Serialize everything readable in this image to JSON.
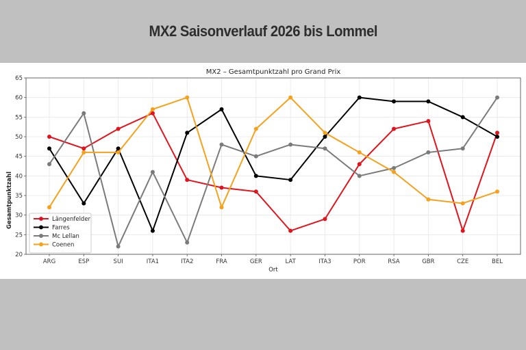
{
  "banner": {
    "title": "MX2 Saisonverlauf 2026 bis Lommel"
  },
  "colors": {
    "page_background": "#c0c0c0",
    "panel_background": "#ffffff",
    "grid": "#e6e6e6",
    "axis": "#555555"
  },
  "chart_data": {
    "type": "line",
    "title": "MX2 – Gesamtpunktzahl pro Grand Prix",
    "xlabel": "Ort",
    "ylabel": "Gesamtpunktzahl",
    "categories": [
      "ARG",
      "ESP",
      "SUI",
      "ITA1",
      "ITA2",
      "FRA",
      "GER",
      "LAT",
      "ITA3",
      "POR",
      "RSA",
      "GBR",
      "CZE",
      "BEL"
    ],
    "ylim": [
      20,
      65
    ],
    "yticks": [
      20,
      25,
      30,
      35,
      40,
      45,
      50,
      55,
      60,
      65
    ],
    "grid": true,
    "legend_position": "bottom-left",
    "series": [
      {
        "name": "Längenfelder",
        "color": "#e0141c",
        "values": [
          50,
          47,
          52,
          56,
          39,
          37,
          36,
          26,
          29,
          43,
          52,
          54,
          26,
          51
        ]
      },
      {
        "name": "Farres",
        "color": "#000000",
        "values": [
          47,
          33,
          47,
          26,
          51,
          57,
          40,
          39,
          50,
          60,
          59,
          59,
          55,
          50
        ]
      },
      {
        "name": "Mc Lellan",
        "color": "#7a7a7a",
        "values": [
          43,
          56,
          22,
          41,
          23,
          48,
          45,
          48,
          47,
          40,
          42,
          46,
          47,
          60
        ]
      },
      {
        "name": "Coenen",
        "color": "#f5a11c",
        "values": [
          32,
          46,
          46,
          57,
          60,
          32,
          52,
          60,
          51,
          46,
          41,
          34,
          33,
          36
        ]
      }
    ]
  }
}
